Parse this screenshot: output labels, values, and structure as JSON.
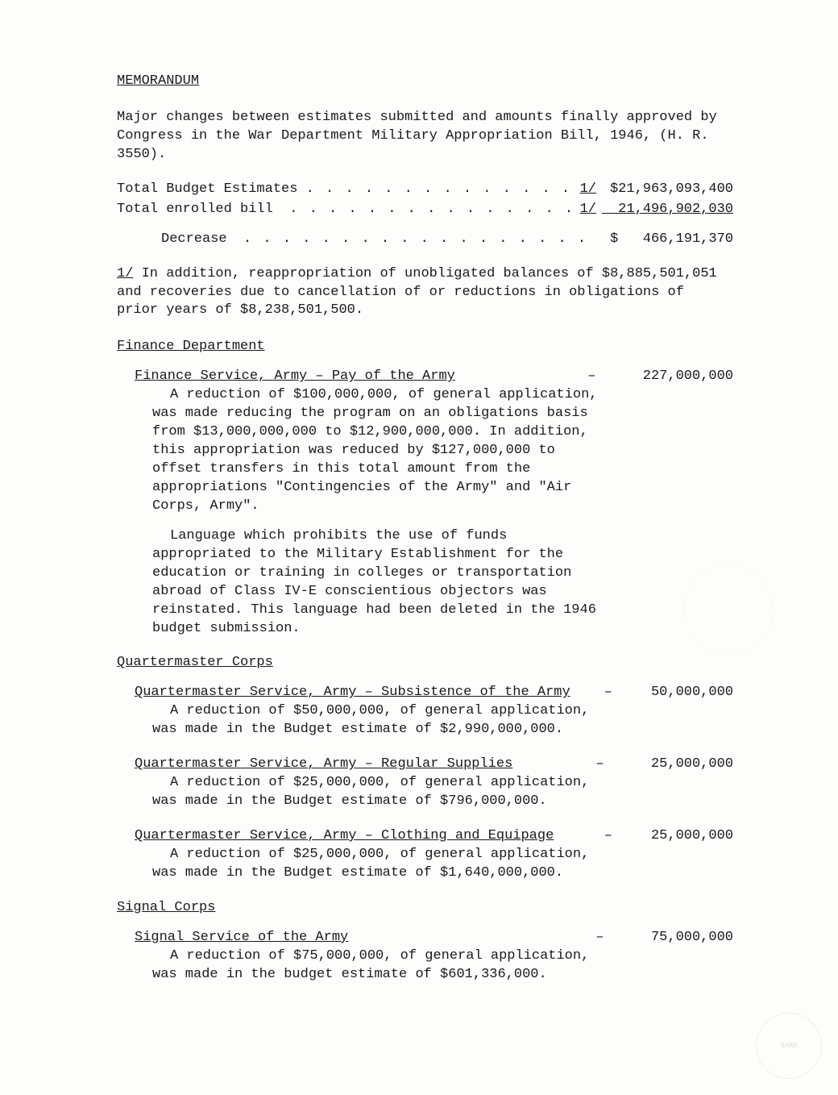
{
  "title": "MEMORANDUM",
  "intro": "Major changes between estimates submitted and amounts finally approved by Congress in the War Department Military Appropriation Bill, 1946, (H. R. 3550).",
  "budget": {
    "rows": [
      {
        "label": "Total Budget Estimates ",
        "ref": "1/",
        "amount": " $21,963,093,400",
        "underline_amt": false
      },
      {
        "label": "Total enrolled bill  ",
        "ref": "1/",
        "amount": "  21,496,902,030",
        "underline_amt": true
      }
    ],
    "decrease_label": "Decrease  ",
    "decrease_amount": "$   466,191,370"
  },
  "footnote": {
    "ref": "1/",
    "text": " In addition, reappropriation of unobligated balances of $8,885,501,051 and recoveries due to cancellation of or reductions in obligations of prior years of $8,238,501,500."
  },
  "sections": [
    {
      "head": "Finance Department",
      "items": [
        {
          "title": "Finance Service, Army – Pay of the Army",
          "amount": "227,000,000",
          "paras": [
            "A reduction of $100,000,000, of general application, was made reducing the program on an obligations basis from $13,000,000,000 to $12,900,000,000. In addition, this appropriation was reduced by $127,000,000 to offset transfers in this total amount from the appropriations \"Contingencies of the Army\" and \"Air Corps, Army\".",
            "Language which prohibits the use of funds appropriated to the Military Establishment for the education or training in colleges or transportation abroad of Class IV-E conscientious objectors was reinstated. This language had been deleted in the 1946 budget submission."
          ]
        }
      ]
    },
    {
      "head": "Quartermaster Corps",
      "items": [
        {
          "title": "Quartermaster Service, Army – Subsistence of the Army",
          "amount": "50,000,000",
          "paras": [
            "A reduction of $50,000,000, of general application, was made in the Budget estimate of $2,990,000,000."
          ]
        },
        {
          "title": "Quartermaster Service, Army – Regular Supplies",
          "amount": "25,000,000",
          "paras": [
            "A reduction of $25,000,000, of general application, was made in the Budget estimate of $796,000,000."
          ]
        },
        {
          "title": "Quartermaster Service, Army – Clothing and Equipage",
          "amount": "25,000,000",
          "paras": [
            "A reduction of $25,000,000, of general application, was made in the Budget estimate of $1,640,000,000."
          ]
        }
      ]
    },
    {
      "head": "Signal Corps",
      "items": [
        {
          "title": "Signal Service of the Army",
          "amount": "75,000,000",
          "paras": [
            "A reduction of $75,000,000, of general application, was made in the budget estimate of $601,336,000."
          ]
        }
      ]
    }
  ],
  "stamp_text": "NARA"
}
